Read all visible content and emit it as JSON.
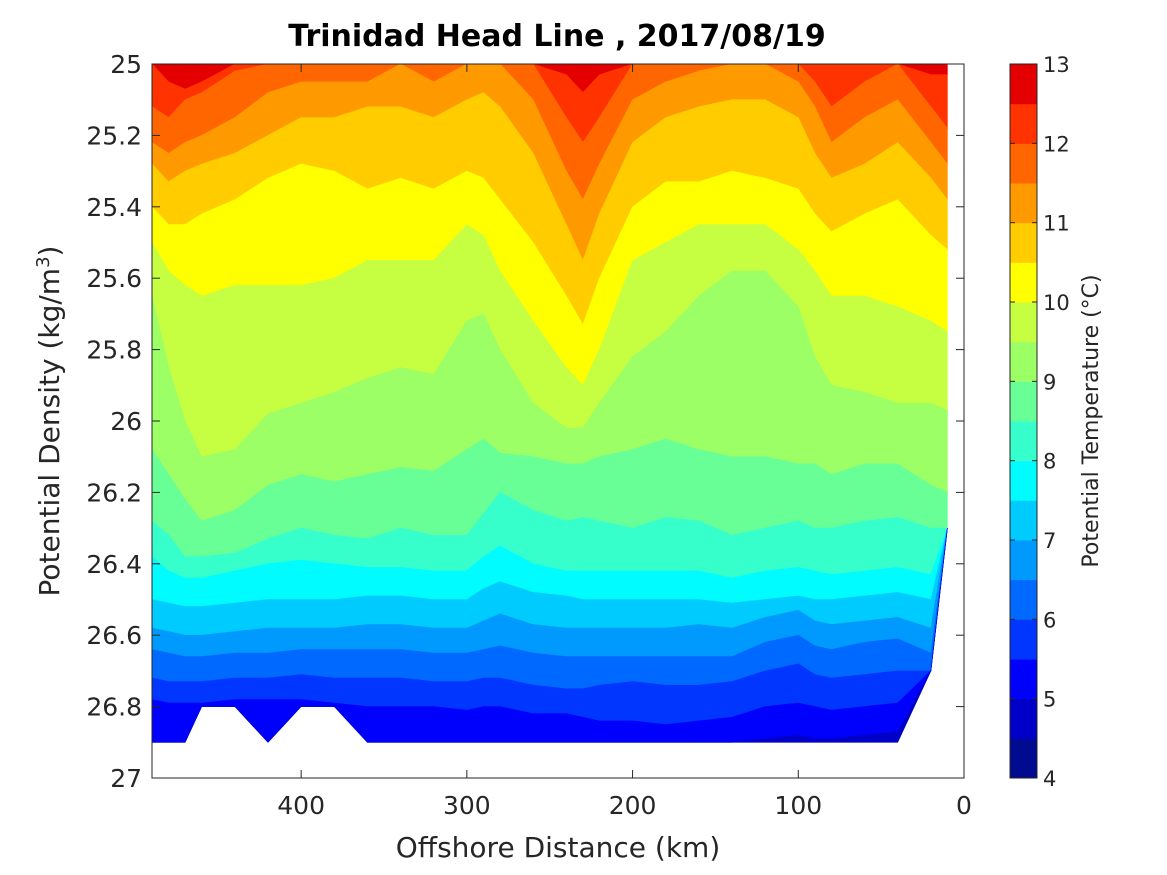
{
  "chart_data": {
    "type": "filled-contour",
    "title": "Trinidad Head Line , 2017/08/19",
    "xlabel": "Offshore Distance (km)",
    "ylabel": {
      "main": "Potential Density (kg/m",
      "sup": "3",
      "close": ")"
    },
    "xlim": [
      490,
      0
    ],
    "ylim": [
      25,
      27
    ],
    "y_reversed": true,
    "x_reversed": true,
    "xticks": [
      400,
      300,
      200,
      100,
      0
    ],
    "yticks": [
      25,
      25.2,
      25.4,
      25.6,
      25.8,
      26,
      26.2,
      26.4,
      26.6,
      26.8,
      27
    ],
    "colorbar": {
      "label": "Potential Temperature (°C)",
      "range": [
        4,
        13
      ],
      "ticks": [
        4,
        5,
        6,
        7,
        8,
        9,
        10,
        11,
        12,
        13
      ],
      "levels": [
        4,
        4.5,
        5,
        5.5,
        6,
        6.5,
        7,
        7.5,
        8,
        8.5,
        9,
        9.5,
        10,
        10.5,
        11,
        11.5,
        12,
        12.5,
        13
      ],
      "colors": [
        "#000b8f",
        "#0000c8",
        "#0000fd",
        "#0036ff",
        "#0069ff",
        "#009aff",
        "#00cbff",
        "#00fcff",
        "#36ffcb",
        "#69ff97",
        "#9bff65",
        "#c6ff42",
        "#ffff00",
        "#ffcc00",
        "#ff9900",
        "#ff6600",
        "#ff3300",
        "#e40000",
        "#a50000"
      ]
    },
    "x": [
      490,
      480,
      470,
      460,
      440,
      420,
      400,
      380,
      360,
      340,
      320,
      300,
      290,
      280,
      260,
      240,
      230,
      220,
      200,
      180,
      160,
      140,
      120,
      100,
      90,
      80,
      60,
      40,
      20,
      10
    ],
    "data_bottom": [
      26.9,
      26.9,
      26.9,
      26.8,
      26.8,
      26.9,
      26.8,
      26.8,
      26.9,
      26.9,
      26.9,
      26.9,
      26.9,
      26.9,
      26.9,
      26.9,
      26.9,
      26.9,
      26.9,
      26.9,
      26.9,
      26.9,
      26.9,
      26.9,
      26.9,
      26.9,
      26.9,
      26.9,
      26.7,
      26.3
    ],
    "isotherms": [
      {
        "temp": 12.5,
        "sigma": [
          25.0,
          25.05,
          25.07,
          25.05,
          25.0,
          25.0,
          25.0,
          25.0,
          25.0,
          25.0,
          25.0,
          25.0,
          25.0,
          25.0,
          25.0,
          25.03,
          25.08,
          25.03,
          25.0,
          25.0,
          25.0,
          25.0,
          25.0,
          25.0,
          25.0,
          25.0,
          25.0,
          25.0,
          25.03,
          25.03
        ]
      },
      {
        "temp": 12.0,
        "sigma": [
          25.12,
          25.15,
          25.1,
          25.08,
          25.02,
          25.0,
          25.0,
          25.0,
          25.0,
          25.0,
          25.0,
          25.0,
          25.0,
          25.0,
          25.0,
          25.15,
          25.22,
          25.15,
          25.0,
          25.0,
          25.0,
          25.0,
          25.0,
          25.0,
          25.05,
          25.12,
          25.05,
          25.0,
          25.12,
          25.18
        ]
      },
      {
        "temp": 11.5,
        "sigma": [
          25.22,
          25.25,
          25.22,
          25.2,
          25.15,
          25.08,
          25.05,
          25.05,
          25.05,
          25.0,
          25.05,
          25.0,
          25.0,
          25.0,
          25.1,
          25.3,
          25.38,
          25.28,
          25.1,
          25.05,
          25.02,
          25.0,
          25.0,
          25.05,
          25.12,
          25.22,
          25.15,
          25.1,
          25.22,
          25.28
        ]
      },
      {
        "temp": 11.0,
        "sigma": [
          25.28,
          25.33,
          25.3,
          25.28,
          25.25,
          25.2,
          25.15,
          25.15,
          25.12,
          25.12,
          25.15,
          25.1,
          25.08,
          25.12,
          25.25,
          25.45,
          25.55,
          25.42,
          25.22,
          25.15,
          25.12,
          25.1,
          25.1,
          25.15,
          25.25,
          25.32,
          25.28,
          25.22,
          25.32,
          25.38
        ]
      },
      {
        "temp": 10.5,
        "sigma": [
          25.4,
          25.45,
          25.45,
          25.42,
          25.38,
          25.32,
          25.28,
          25.3,
          25.35,
          25.32,
          25.35,
          25.3,
          25.32,
          25.38,
          25.5,
          25.65,
          25.73,
          25.6,
          25.4,
          25.33,
          25.33,
          25.3,
          25.32,
          25.35,
          25.42,
          25.47,
          25.42,
          25.38,
          25.48,
          25.52
        ]
      },
      {
        "temp": 10.0,
        "sigma": [
          25.5,
          25.58,
          25.62,
          25.65,
          25.62,
          25.62,
          25.62,
          25.6,
          25.55,
          25.55,
          25.55,
          25.45,
          25.48,
          25.58,
          25.72,
          25.85,
          25.9,
          25.8,
          25.55,
          25.5,
          25.45,
          25.45,
          25.45,
          25.52,
          25.58,
          25.65,
          25.65,
          25.68,
          25.72,
          25.75
        ]
      },
      {
        "temp": 9.5,
        "sigma": [
          25.65,
          25.85,
          26.0,
          26.1,
          26.08,
          25.98,
          25.95,
          25.92,
          25.88,
          25.85,
          25.87,
          25.72,
          25.7,
          25.8,
          25.95,
          26.02,
          26.02,
          25.95,
          25.82,
          25.75,
          25.65,
          25.58,
          25.58,
          25.68,
          25.82,
          25.9,
          25.92,
          25.95,
          25.95,
          25.97
        ]
      },
      {
        "temp": 9.0,
        "sigma": [
          26.08,
          26.15,
          26.22,
          26.28,
          26.25,
          26.18,
          26.15,
          26.17,
          26.15,
          26.13,
          26.14,
          26.08,
          26.05,
          26.09,
          26.1,
          26.12,
          26.12,
          26.1,
          26.08,
          26.05,
          26.08,
          26.1,
          26.1,
          26.12,
          26.12,
          26.15,
          26.12,
          26.12,
          26.18,
          26.2
        ]
      },
      {
        "temp": 8.5,
        "sigma": [
          26.28,
          26.32,
          26.38,
          26.38,
          26.37,
          26.33,
          26.3,
          26.32,
          26.33,
          26.3,
          26.32,
          26.32,
          26.26,
          26.2,
          26.25,
          26.28,
          26.27,
          26.28,
          26.3,
          26.27,
          26.28,
          26.32,
          26.3,
          26.28,
          26.3,
          26.3,
          26.28,
          26.27,
          26.3,
          26.3
        ]
      },
      {
        "temp": 8.0,
        "sigma": [
          26.38,
          26.42,
          26.44,
          26.44,
          26.42,
          26.4,
          26.39,
          26.4,
          26.41,
          26.41,
          26.42,
          26.42,
          26.38,
          26.35,
          26.4,
          26.42,
          26.42,
          26.42,
          26.42,
          26.42,
          26.42,
          26.44,
          26.42,
          26.41,
          26.42,
          26.43,
          26.42,
          26.41,
          26.43,
          26.43
        ]
      },
      {
        "temp": 7.5,
        "sigma": [
          26.5,
          26.51,
          26.52,
          26.52,
          26.51,
          26.5,
          26.5,
          26.5,
          26.49,
          26.49,
          26.5,
          26.5,
          26.47,
          26.45,
          26.48,
          26.49,
          26.5,
          26.5,
          26.5,
          26.5,
          26.5,
          26.51,
          26.5,
          26.49,
          26.5,
          26.5,
          26.49,
          26.48,
          26.5,
          26.5
        ]
      },
      {
        "temp": 7.0,
        "sigma": [
          26.58,
          26.59,
          26.6,
          26.6,
          26.59,
          26.58,
          26.58,
          26.58,
          26.57,
          26.57,
          26.58,
          26.58,
          26.56,
          26.54,
          26.57,
          26.58,
          26.58,
          26.58,
          26.58,
          26.58,
          26.57,
          26.58,
          26.55,
          26.53,
          26.56,
          26.57,
          26.56,
          26.55,
          26.58,
          26.58
        ]
      },
      {
        "temp": 6.5,
        "sigma": [
          26.64,
          26.65,
          26.66,
          26.66,
          26.65,
          26.65,
          26.64,
          26.64,
          26.64,
          26.64,
          26.65,
          26.65,
          26.64,
          26.63,
          26.65,
          26.66,
          26.66,
          26.66,
          26.66,
          26.66,
          26.66,
          26.66,
          26.62,
          26.6,
          26.63,
          26.64,
          26.62,
          26.61,
          26.65,
          26.65
        ]
      },
      {
        "temp": 6.0,
        "sigma": [
          26.72,
          26.73,
          26.73,
          26.73,
          26.72,
          26.72,
          26.71,
          26.72,
          26.72,
          26.72,
          26.73,
          26.73,
          26.72,
          26.72,
          26.74,
          26.75,
          26.75,
          26.74,
          26.73,
          26.74,
          26.74,
          26.73,
          26.7,
          26.68,
          26.71,
          26.72,
          26.71,
          26.7,
          26.72,
          26.72
        ]
      },
      {
        "temp": 5.5,
        "sigma": [
          26.78,
          26.79,
          26.79,
          26.79,
          26.78,
          26.78,
          26.78,
          26.79,
          26.8,
          26.8,
          26.8,
          26.81,
          26.8,
          26.8,
          26.82,
          26.82,
          26.83,
          26.84,
          26.84,
          26.85,
          26.84,
          26.83,
          26.8,
          26.79,
          26.8,
          26.81,
          26.8,
          26.79,
          26.8,
          26.8
        ]
      },
      {
        "temp": 5.0,
        "sigma": [
          26.92,
          26.92,
          26.92,
          26.92,
          26.92,
          26.92,
          26.92,
          26.92,
          26.92,
          26.92,
          26.92,
          26.92,
          26.92,
          26.92,
          26.92,
          26.92,
          26.92,
          26.92,
          26.92,
          26.92,
          26.92,
          26.92,
          26.89,
          26.88,
          26.89,
          26.89,
          26.88,
          26.87,
          26.89,
          26.89
        ]
      }
    ]
  }
}
